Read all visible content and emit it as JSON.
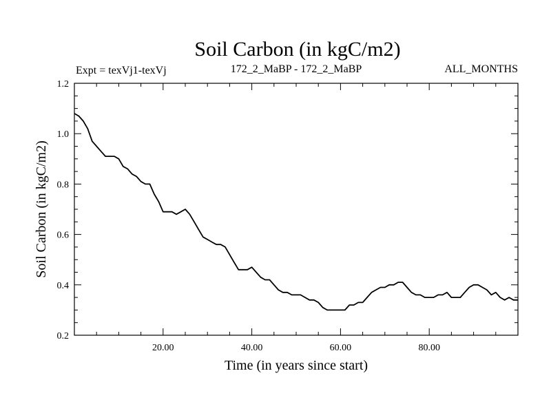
{
  "chart_data": {
    "type": "line",
    "title": "Soil Carbon (in kgC/m2)",
    "subtitle_left": "Expt = texVj1-texVj",
    "subtitle_center": "172_2_MaBP - 172_2_MaBP",
    "subtitle_right": "ALL_MONTHS",
    "xlabel": "Time (in years since start)",
    "ylabel": "Soil Carbon (in kgC/m2)",
    "xlim": [
      0,
      100
    ],
    "ylim": [
      0.2,
      1.2
    ],
    "x_ticks": [
      20,
      40,
      60,
      80
    ],
    "x_tick_labels": [
      "20.00",
      "40.00",
      "60.00",
      "80.00"
    ],
    "y_ticks": [
      0.2,
      0.4,
      0.6,
      0.8,
      1.0,
      1.2
    ],
    "y_tick_labels": [
      "0.2",
      "0.4",
      "0.6",
      "0.8",
      "1.0",
      "1.2"
    ],
    "series": [
      {
        "name": "Soil Carbon",
        "x": [
          0,
          1,
          2,
          3,
          4,
          5,
          6,
          7,
          8,
          9,
          10,
          11,
          12,
          13,
          14,
          15,
          16,
          17,
          18,
          19,
          20,
          21,
          22,
          23,
          24,
          25,
          26,
          27,
          28,
          29,
          30,
          31,
          32,
          33,
          34,
          35,
          36,
          37,
          38,
          39,
          40,
          41,
          42,
          43,
          44,
          45,
          46,
          47,
          48,
          49,
          50,
          51,
          52,
          53,
          54,
          55,
          56,
          57,
          58,
          59,
          60,
          61,
          62,
          63,
          64,
          65,
          66,
          67,
          68,
          69,
          70,
          71,
          72,
          73,
          74,
          75,
          76,
          77,
          78,
          79,
          80,
          81,
          82,
          83,
          84,
          85,
          86,
          87,
          88,
          89,
          90,
          91,
          92,
          93,
          94,
          95,
          96,
          97,
          98,
          99,
          100
        ],
        "values": [
          1.08,
          1.07,
          1.05,
          1.02,
          0.97,
          0.95,
          0.93,
          0.91,
          0.91,
          0.91,
          0.9,
          0.87,
          0.86,
          0.84,
          0.83,
          0.81,
          0.8,
          0.8,
          0.76,
          0.73,
          0.69,
          0.69,
          0.69,
          0.68,
          0.69,
          0.7,
          0.68,
          0.65,
          0.62,
          0.59,
          0.58,
          0.57,
          0.56,
          0.56,
          0.55,
          0.52,
          0.49,
          0.46,
          0.46,
          0.46,
          0.47,
          0.45,
          0.43,
          0.42,
          0.42,
          0.4,
          0.38,
          0.37,
          0.37,
          0.36,
          0.36,
          0.36,
          0.35,
          0.34,
          0.34,
          0.33,
          0.31,
          0.3,
          0.3,
          0.3,
          0.3,
          0.3,
          0.32,
          0.32,
          0.33,
          0.33,
          0.35,
          0.37,
          0.38,
          0.39,
          0.39,
          0.4,
          0.4,
          0.41,
          0.41,
          0.39,
          0.37,
          0.36,
          0.36,
          0.35,
          0.35,
          0.35,
          0.36,
          0.36,
          0.37,
          0.35,
          0.35,
          0.35,
          0.37,
          0.39,
          0.4,
          0.4,
          0.39,
          0.38,
          0.36,
          0.37,
          0.35,
          0.34,
          0.35,
          0.34,
          0.34
        ]
      }
    ]
  }
}
